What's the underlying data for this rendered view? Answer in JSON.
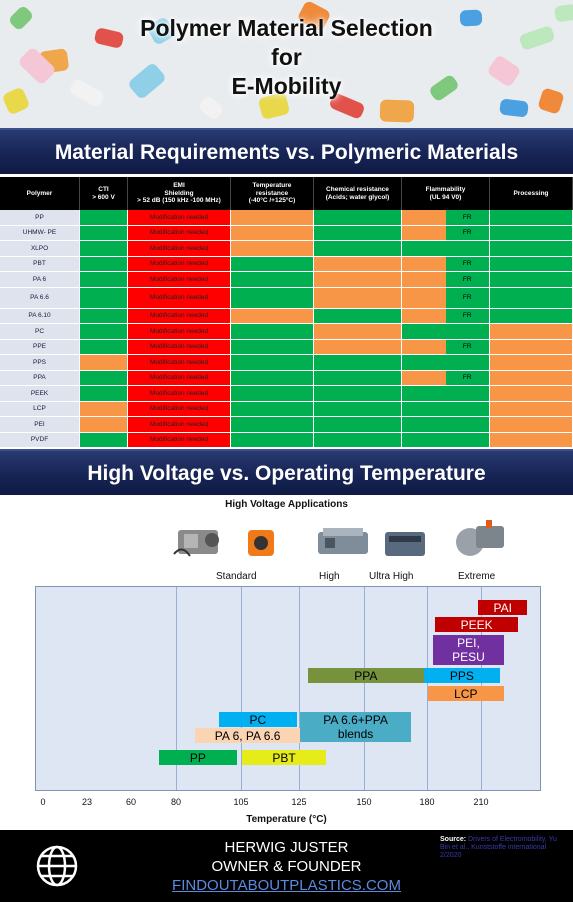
{
  "header": {
    "title_line1": "Polymer Material Selection",
    "title_line2": "for",
    "title_line3": "E-Mobility"
  },
  "section1_title": "Material Requirements vs. Polymeric Materials",
  "section2_title": "High Voltage vs. Operating Temperature",
  "matrix": {
    "columns": [
      "Polymer",
      "CTI\n> 600 V",
      "EMI\nShielding\n> 52 dB (150 kHz -100 MHz)",
      "Temperature\nresistance\n(-40°C /+125°C)",
      "Chemical resistance\n(Acids; water glycol)",
      "Flammability\n(UL 94 V0)",
      "Processing"
    ],
    "emi_text": "Modification needed",
    "fr_text": "FR",
    "colors": {
      "g": "#00b050",
      "r": "#ff0000",
      "o": "#f79646"
    },
    "rows": [
      {
        "polymer": "PP",
        "cti": "g",
        "emi": "r",
        "temp": "o",
        "chem": "g",
        "flam": [
          "o",
          "g"
        ],
        "fr": true,
        "proc": "g"
      },
      {
        "polymer": "UHMW- PE",
        "cti": "g",
        "emi": "r",
        "temp": "o",
        "chem": "g",
        "flam": [
          "o",
          "g"
        ],
        "fr": true,
        "proc": "g"
      },
      {
        "polymer": "XLPO",
        "cti": "g",
        "emi": "r",
        "temp": "o",
        "chem": "g",
        "flam": [
          "g",
          "g"
        ],
        "fr": false,
        "proc": "g"
      },
      {
        "polymer": "PBT",
        "cti": "g",
        "emi": "r",
        "temp": "g",
        "chem": "o",
        "flam": [
          "o",
          "g"
        ],
        "fr": true,
        "proc": "g"
      },
      {
        "polymer": "PA 6",
        "cti": "g",
        "emi": "r",
        "temp": "g",
        "chem": "o",
        "flam": [
          "o",
          "g"
        ],
        "fr": true,
        "proc": "g"
      },
      {
        "polymer": "PA 6.6",
        "cti": "g",
        "emi": "r",
        "temp": "g",
        "chem": "o",
        "flam": [
          "o",
          "g"
        ],
        "fr": true,
        "proc": "g",
        "tall": true
      },
      {
        "polymer": "PA 6.10",
        "cti": "g",
        "emi": "r",
        "temp": "o",
        "chem": "g",
        "flam": [
          "o",
          "g"
        ],
        "fr": true,
        "proc": "g"
      },
      {
        "polymer": "PC",
        "cti": "g",
        "emi": "r",
        "temp": "g",
        "chem": "o",
        "flam": [
          "g",
          "g"
        ],
        "fr": false,
        "proc": "o"
      },
      {
        "polymer": "PPE",
        "cti": "g",
        "emi": "r",
        "temp": "g",
        "chem": "o",
        "flam": [
          "o",
          "g"
        ],
        "fr": true,
        "proc": "o"
      },
      {
        "polymer": "PPS",
        "cti": "o",
        "emi": "r",
        "temp": "g",
        "chem": "g",
        "flam": [
          "g",
          "g"
        ],
        "fr": false,
        "proc": "o"
      },
      {
        "polymer": "PPA",
        "cti": "g",
        "emi": "r",
        "temp": "g",
        "chem": "g",
        "flam": [
          "o",
          "g"
        ],
        "fr": true,
        "proc": "o"
      },
      {
        "polymer": "PEEK",
        "cti": "g",
        "emi": "r",
        "temp": "g",
        "chem": "g",
        "flam": [
          "g",
          "g"
        ],
        "fr": false,
        "proc": "o"
      },
      {
        "polymer": "LCP",
        "cti": "o",
        "emi": "r",
        "temp": "g",
        "chem": "g",
        "flam": [
          "g",
          "g"
        ],
        "fr": false,
        "proc": "o"
      },
      {
        "polymer": "PEI",
        "cti": "o",
        "emi": "r",
        "temp": "g",
        "chem": "g",
        "flam": [
          "g",
          "g"
        ],
        "fr": false,
        "proc": "o"
      },
      {
        "polymer": "PVDF",
        "cti": "g",
        "emi": "r",
        "temp": "g",
        "chem": "g",
        "flam": [
          "g",
          "g"
        ],
        "fr": false,
        "proc": "o"
      }
    ]
  },
  "chart_data": {
    "type": "bar",
    "title": "High Voltage Applications",
    "xlabel": "Temperature (°C)",
    "xticks": [
      0,
      23,
      60,
      80,
      105,
      125,
      150,
      180,
      210
    ],
    "categories": [
      "Standard",
      "High",
      "Ultra High",
      "Extreme"
    ],
    "grid": true,
    "series": [
      {
        "name": "PAI",
        "start": 208,
        "end": 235,
        "color": "#c00000",
        "text_color": "#ffffff"
      },
      {
        "name": "PEEK",
        "start": 184,
        "end": 230,
        "color": "#c00000",
        "text_color": "#ffffff"
      },
      {
        "name": "PEI,\nPESU",
        "start": 183,
        "end": 222,
        "color": "#7030a0",
        "text_color": "#ffffff"
      },
      {
        "name": "PPA",
        "start": 128,
        "end": 178,
        "color": "#76923c",
        "text_color": "#000000"
      },
      {
        "name": "PPS",
        "start": 178,
        "end": 220,
        "color": "#00b0f0",
        "text_color": "#000000"
      },
      {
        "name": "LCP",
        "start": 180,
        "end": 222,
        "color": "#f79646",
        "text_color": "#000000"
      },
      {
        "name": "PC",
        "start": 96,
        "end": 124,
        "color": "#00b0f0",
        "text_color": "#000000"
      },
      {
        "name": "PA 6.6+PPA\nblends",
        "start": 125,
        "end": 172,
        "color": "#4bacc6",
        "text_color": "#000000"
      },
      {
        "name": "PA 6, PA 6.6",
        "start": 87,
        "end": 125,
        "color": "#fbd4b4",
        "text_color": "#000000"
      },
      {
        "name": "PP",
        "start": 72,
        "end": 103,
        "color": "#00b050",
        "text_color": "#000000"
      },
      {
        "name": "PBT",
        "start": 105,
        "end": 135,
        "color": "#e6ec1a",
        "text_color": "#000000"
      }
    ]
  },
  "footer": {
    "name": "HERWIG JUSTER",
    "role": "OWNER & FOUNDER",
    "url": "FINDOUTABOUTPLASTICS.COM",
    "source_label": "Source:",
    "source_text": "Drivers of Electromobility, Yu Bin et al., Kunststoffe international 2/2020"
  }
}
